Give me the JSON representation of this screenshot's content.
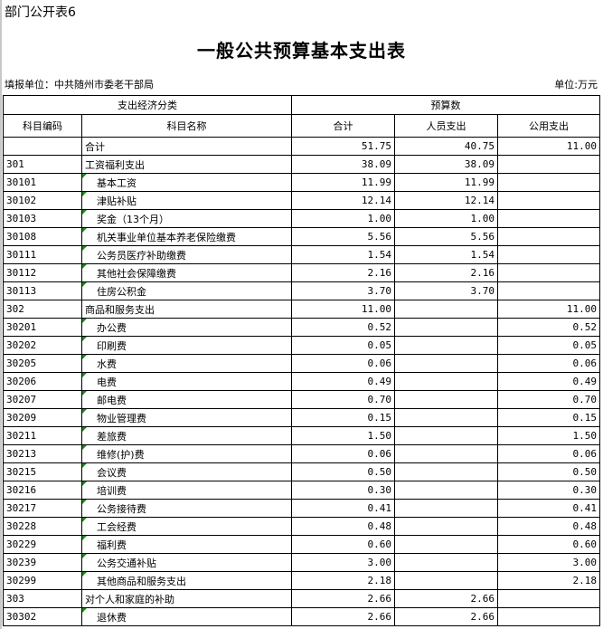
{
  "sheet_label": "部门公开表6",
  "title": "一般公共预算基本支出表",
  "filler_unit": "填报单位：中共随州市委老干部局",
  "unit": "单位:万元",
  "headers": {
    "group_class": "支出经济分类",
    "group_budget": "预算数",
    "code": "科目编码",
    "name": "科目名称",
    "total": "合计",
    "personnel": "人员支出",
    "public": "公用支出"
  },
  "rows": [
    {
      "code": "",
      "name": "合计",
      "total": "51.75",
      "personnel": "40.75",
      "public": "11.00",
      "level": 0
    },
    {
      "code": "301",
      "name": "工资福利支出",
      "total": "38.09",
      "personnel": "38.09",
      "public": "",
      "level": 0
    },
    {
      "code": "30101",
      "name": "基本工资",
      "total": "11.99",
      "personnel": "11.99",
      "public": "",
      "level": 1
    },
    {
      "code": "30102",
      "name": "津贴补贴",
      "total": "12.14",
      "personnel": "12.14",
      "public": "",
      "level": 1
    },
    {
      "code": "30103",
      "name": "奖金（13个月）",
      "total": "1.00",
      "personnel": "1.00",
      "public": "",
      "level": 1
    },
    {
      "code": "30108",
      "name": "机关事业单位基本养老保险缴费",
      "total": "5.56",
      "personnel": "5.56",
      "public": "",
      "level": 1
    },
    {
      "code": "30111",
      "name": "公务员医疗补助缴费",
      "total": "1.54",
      "personnel": "1.54",
      "public": "",
      "level": 1
    },
    {
      "code": "30112",
      "name": "其他社会保障缴费",
      "total": "2.16",
      "personnel": "2.16",
      "public": "",
      "level": 1
    },
    {
      "code": "30113",
      "name": "住房公积金",
      "total": "3.70",
      "personnel": "3.70",
      "public": "",
      "level": 1
    },
    {
      "code": "302",
      "name": "商品和服务支出",
      "total": "11.00",
      "personnel": "",
      "public": "11.00",
      "level": 0
    },
    {
      "code": "30201",
      "name": "办公费",
      "total": "0.52",
      "personnel": "",
      "public": "0.52",
      "level": 1
    },
    {
      "code": "30202",
      "name": "印刷费",
      "total": "0.05",
      "personnel": "",
      "public": "0.05",
      "level": 1
    },
    {
      "code": "30205",
      "name": "水费",
      "total": "0.06",
      "personnel": "",
      "public": "0.06",
      "level": 1
    },
    {
      "code": "30206",
      "name": "电费",
      "total": "0.49",
      "personnel": "",
      "public": "0.49",
      "level": 1
    },
    {
      "code": "30207",
      "name": "邮电费",
      "total": "0.70",
      "personnel": "",
      "public": "0.70",
      "level": 1
    },
    {
      "code": "30209",
      "name": "物业管理费",
      "total": "0.15",
      "personnel": "",
      "public": "0.15",
      "level": 1
    },
    {
      "code": "30211",
      "name": "差旅费",
      "total": "1.50",
      "personnel": "",
      "public": "1.50",
      "level": 1
    },
    {
      "code": "30213",
      "name": "维修(护)费",
      "total": "0.06",
      "personnel": "",
      "public": "0.06",
      "level": 1
    },
    {
      "code": "30215",
      "name": "会议费",
      "total": "0.50",
      "personnel": "",
      "public": "0.50",
      "level": 1
    },
    {
      "code": "30216",
      "name": "培训费",
      "total": "0.30",
      "personnel": "",
      "public": "0.30",
      "level": 1
    },
    {
      "code": "30217",
      "name": "公务接待费",
      "total": "0.41",
      "personnel": "",
      "public": "0.41",
      "level": 1
    },
    {
      "code": "30228",
      "name": "工会经费",
      "total": "0.48",
      "personnel": "",
      "public": "0.48",
      "level": 1
    },
    {
      "code": "30229",
      "name": "福利费",
      "total": "0.60",
      "personnel": "",
      "public": "0.60",
      "level": 1
    },
    {
      "code": "30239",
      "name": "公务交通补贴",
      "total": "3.00",
      "personnel": "",
      "public": "3.00",
      "level": 1
    },
    {
      "code": "30299",
      "name": "其他商品和服务支出",
      "total": "2.18",
      "personnel": "",
      "public": "2.18",
      "level": 1
    },
    {
      "code": "303",
      "name": "对个人和家庭的补助",
      "total": "2.66",
      "personnel": "2.66",
      "public": "",
      "level": 0
    },
    {
      "code": "30302",
      "name": "退休费",
      "total": "2.66",
      "personnel": "2.66",
      "public": "",
      "level": 1
    }
  ]
}
